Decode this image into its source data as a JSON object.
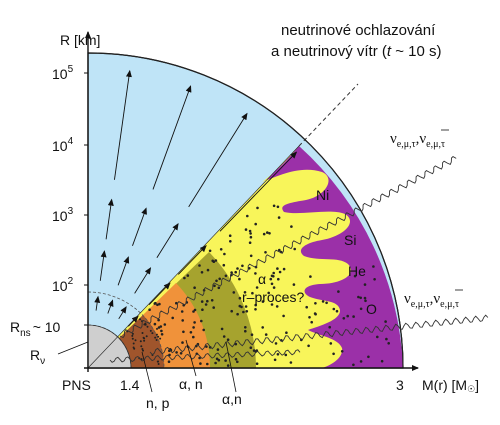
{
  "title": {
    "line1": "neutrinové ochlazování",
    "line2_prefix": "a neutrinový vítr (",
    "line2_italic": "t",
    "line2_suffix": " ~ 10 s)"
  },
  "axes": {
    "y_label": "R [km]",
    "x_label": "M(r) [M",
    "x_label_sun": "☉",
    "x_label_close": "]",
    "y_ticks": [
      {
        "base": "10",
        "exp": "5"
      },
      {
        "base": "10",
        "exp": "4"
      },
      {
        "base": "10",
        "exp": "3"
      },
      {
        "base": "10",
        "exp": "2"
      }
    ],
    "r_ns_label": "R",
    "r_ns_sub": "ns",
    "r_ns_value": "~ 10",
    "r_nu_label": "R",
    "r_nu_sub": "ν",
    "x_ticks": {
      "pns": "PNS",
      "m1": "1.4",
      "m3": "3"
    }
  },
  "regions": {
    "np": "n, p",
    "alpha_n_inner": "α, n",
    "alpha_n_outer": "α,n",
    "alpha": "α",
    "r_process": "r–proces?",
    "ni": "Ni",
    "si": "Si",
    "he": "He",
    "o": "O"
  },
  "neutrinos": {
    "symbol": "ν",
    "flavors": "e,μ,τ",
    "separator": ","
  },
  "colors": {
    "wind": "#bfe4f7",
    "purple": "#9b30a8",
    "yellow": "#f8f55a",
    "olive": "#a6a32e",
    "orange": "#f0923a",
    "core": "#a0552c",
    "grey": "#cfcfcf"
  }
}
